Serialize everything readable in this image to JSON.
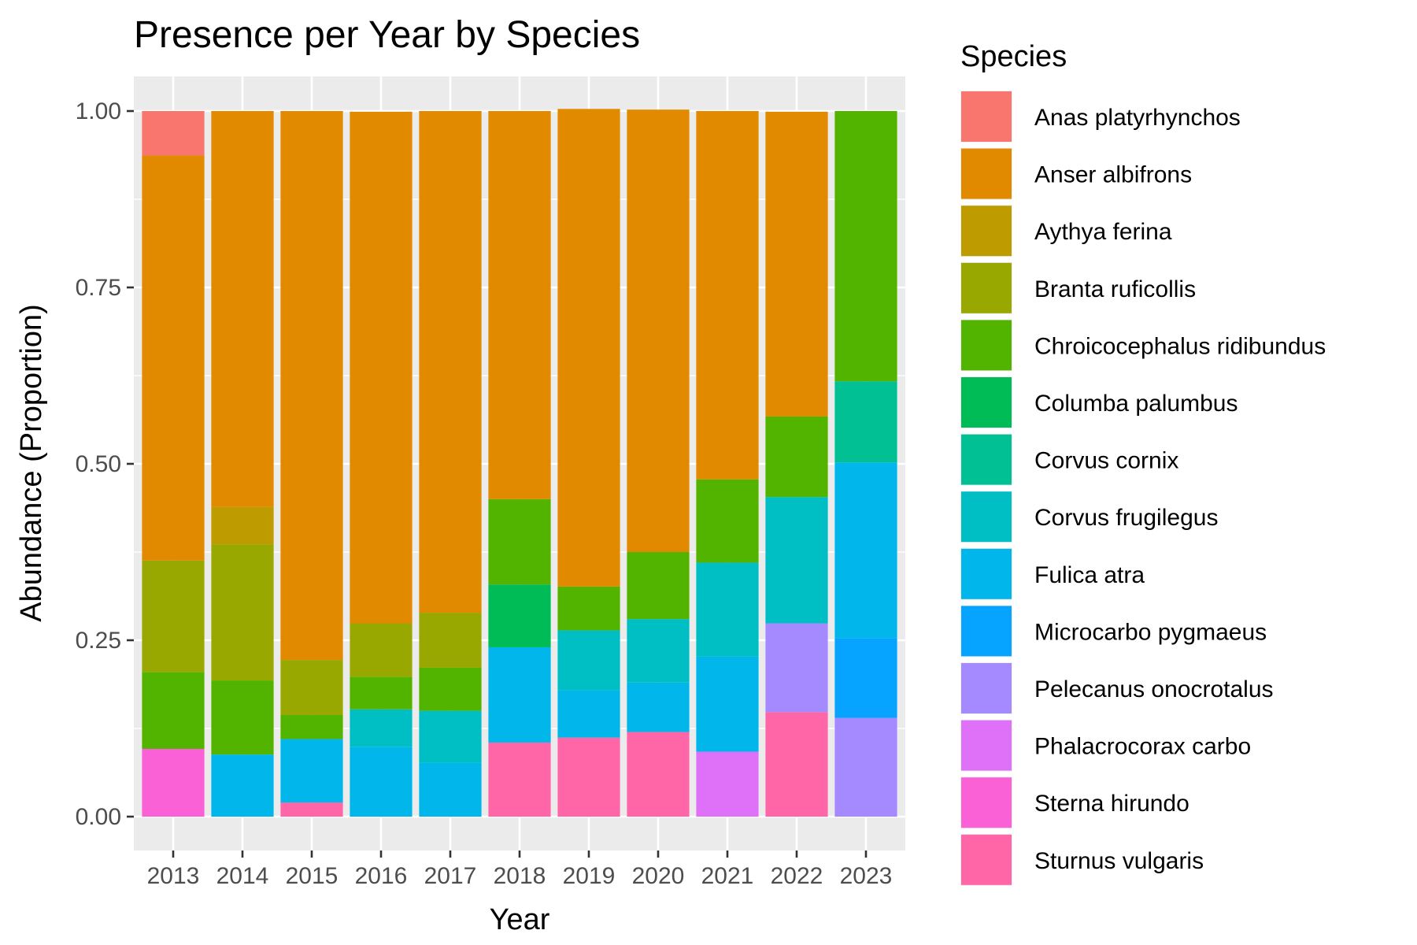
{
  "chart_data": {
    "type": "bar",
    "stacked": true,
    "title": "Presence per Year by Species",
    "xlabel": "Year",
    "ylabel": "Abundance (Proportion)",
    "ylim": [
      0,
      1
    ],
    "yticks": [
      "0.00",
      "0.25",
      "0.50",
      "0.75",
      "1.00"
    ],
    "grid": true,
    "legend_position": "right",
    "legend_title": "Species",
    "categories": [
      "2013",
      "2014",
      "2015",
      "2016",
      "2017",
      "2018",
      "2019",
      "2020",
      "2021",
      "2022",
      "2023"
    ],
    "series": [
      {
        "name": "Anas platyrhynchos",
        "color": "#F8766D",
        "values": [
          0.063,
          0,
          0,
          0,
          0,
          0,
          0,
          0,
          0,
          0,
          0
        ]
      },
      {
        "name": "Anser albifrons",
        "color": "#E18A00",
        "values": [
          0.574,
          0.561,
          0.778,
          0.725,
          0.711,
          0.55,
          0.677,
          0.627,
          0.522,
          0.432,
          0
        ]
      },
      {
        "name": "Aythya ferina",
        "color": "#BE9C00",
        "values": [
          0,
          0.053,
          0,
          0,
          0,
          0,
          0,
          0,
          0,
          0,
          0
        ]
      },
      {
        "name": "Branta ruficollis",
        "color": "#99A800",
        "values": [
          0.158,
          0.193,
          0.078,
          0.076,
          0.078,
          0,
          0,
          0,
          0,
          0,
          0
        ]
      },
      {
        "name": "Chroicocephalus ridibundus",
        "color": "#53B400",
        "values": [
          0.109,
          0.105,
          0.034,
          0.046,
          0.061,
          0.121,
          0.062,
          0.095,
          0.118,
          0.114,
          0.383
        ]
      },
      {
        "name": "Columba palumbus",
        "color": "#00BC56",
        "values": [
          0,
          0,
          0,
          0,
          0,
          0.089,
          0,
          0,
          0,
          0,
          0
        ]
      },
      {
        "name": "Corvus cornix",
        "color": "#00C094",
        "values": [
          0,
          0,
          0,
          0,
          0,
          0,
          0,
          0,
          0,
          0,
          0.115
        ]
      },
      {
        "name": "Corvus frugilegus",
        "color": "#00BFC4",
        "values": [
          0,
          0,
          0,
          0.053,
          0.074,
          0,
          0.085,
          0.09,
          0.133,
          0.179,
          0
        ]
      },
      {
        "name": "Fulica atra",
        "color": "#00B6EB",
        "values": [
          0,
          0.088,
          0.09,
          0.099,
          0.076,
          0.135,
          0.067,
          0.07,
          0.135,
          0,
          0.249
        ]
      },
      {
        "name": "Microcarbo pygmaeus",
        "color": "#06A4FF",
        "values": [
          0,
          0,
          0,
          0,
          0,
          0,
          0,
          0,
          0,
          0,
          0.113
        ]
      },
      {
        "name": "Pelecanus onocrotalus",
        "color": "#A58AFF",
        "values": [
          0,
          0,
          0,
          0,
          0,
          0,
          0,
          0,
          0,
          0.126,
          0.14
        ]
      },
      {
        "name": "Phalacrocorax carbo",
        "color": "#DF70F8",
        "values": [
          0,
          0,
          0,
          0,
          0,
          0,
          0,
          0,
          0.092,
          0,
          0
        ]
      },
      {
        "name": "Sterna hirundo",
        "color": "#FB61D7",
        "values": [
          0.096,
          0,
          0,
          0,
          0,
          0,
          0,
          0,
          0,
          0,
          0
        ]
      },
      {
        "name": "Sturnus vulgaris",
        "color": "#FF66A8",
        "values": [
          0,
          0,
          0.02,
          0,
          0,
          0.105,
          0.112,
          0.12,
          0,
          0.148,
          0
        ]
      }
    ]
  }
}
